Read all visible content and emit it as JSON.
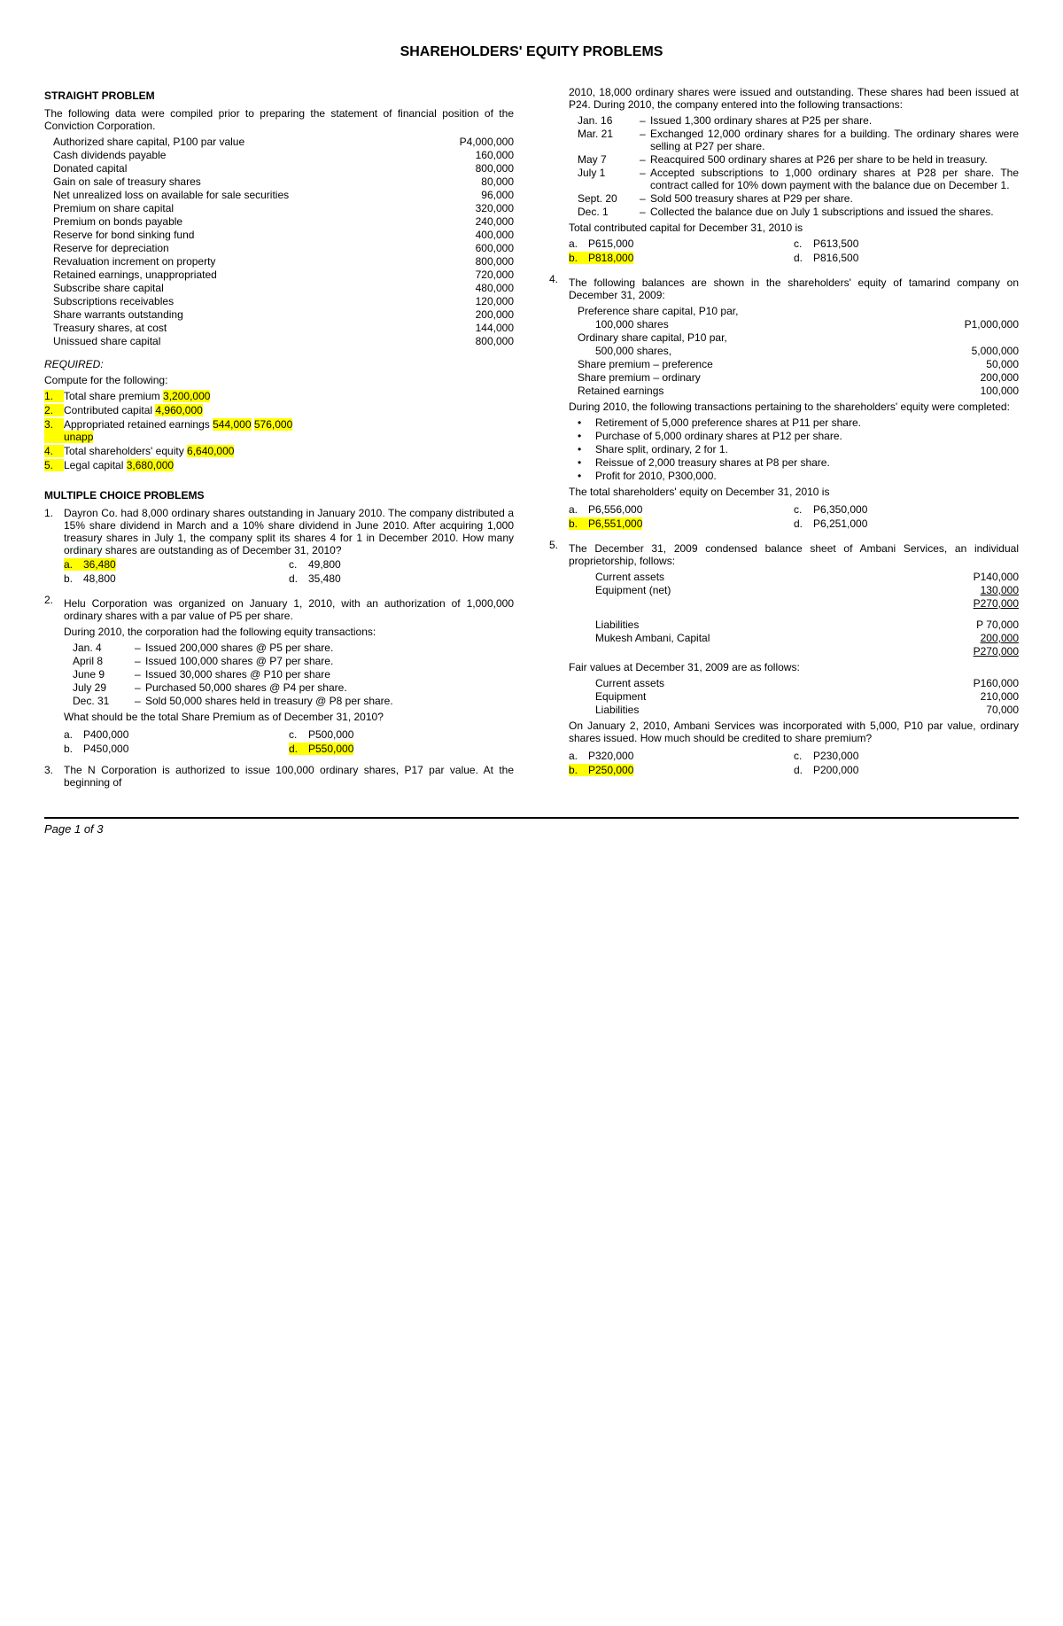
{
  "title": "SHAREHOLDERS' EQUITY PROBLEMS",
  "left": {
    "straight_title": "STRAIGHT PROBLEM",
    "straight_intro": "The following data were compiled prior to preparing the statement of financial position of the Conviction Corporation.",
    "table": [
      {
        "label": "Authorized share capital, P100 par value",
        "value": "P4,000,000"
      },
      {
        "label": "Cash dividends payable",
        "value": "160,000"
      },
      {
        "label": "Donated capital",
        "value": "800,000"
      },
      {
        "label": "Gain on sale of treasury shares",
        "value": "80,000"
      },
      {
        "label": "Net unrealized loss on available for sale securities",
        "value": "96,000"
      },
      {
        "label": "Premium on share capital",
        "value": "320,000"
      },
      {
        "label": "Premium on bonds payable",
        "value": "240,000"
      },
      {
        "label": "Reserve for bond sinking fund",
        "value": "400,000"
      },
      {
        "label": "Reserve for depreciation",
        "value": "600,000"
      },
      {
        "label": "Revaluation increment on property",
        "value": "800,000"
      },
      {
        "label": "Retained earnings, unappropriated",
        "value": "720,000"
      },
      {
        "label": "Subscribe share capital",
        "value": "480,000"
      },
      {
        "label": "Subscriptions receivables",
        "value": "120,000"
      },
      {
        "label": "Share warrants outstanding",
        "value": "200,000"
      },
      {
        "label": "Treasury shares, at cost",
        "value": "144,000"
      },
      {
        "label": "Unissued share capital",
        "value": "800,000"
      }
    ],
    "required_label": "REQUIRED:",
    "compute_label": "Compute for the following:",
    "req": [
      {
        "n": "1.",
        "t": "Total share premium",
        "a": "3,200,000"
      },
      {
        "n": "2.",
        "t": "Contributed capital",
        "a": "4,960,000"
      },
      {
        "n": "3.",
        "t": "Appropriated retained earnings",
        "a": "544,000",
        "a2": "576,000",
        "extra": "unapp"
      },
      {
        "n": "4.",
        "t": "Total shareholders' equity",
        "a": "6,640,000"
      },
      {
        "n": "5.",
        "t": "Legal capital",
        "a": "3,680,000"
      }
    ],
    "mcp_title": "MULTIPLE CHOICE PROBLEMS",
    "q1": {
      "n": "1.",
      "text": "Dayron Co. had 8,000 ordinary shares outstanding in January 2010.  The company distributed a 15% share dividend in March and a 10% share dividend in June 2010.  After acquiring 1,000 treasury shares in July 1, the company split its shares 4 for 1 in December 2010.  How many ordinary shares are outstanding as of December 31, 2010?",
      "a": "36,480",
      "b": "48,800",
      "c": "49,800",
      "d": "35,480"
    },
    "q2": {
      "n": "2.",
      "intro": "Helu Corporation was organized on January 1, 2010, with an authorization of 1,000,000 ordinary shares with a par value of P5 per share.",
      "during": "During 2010, the corporation had the following equity transactions:",
      "trans": [
        {
          "d": "Jan. 4",
          "t": "Issued 200,000 shares @ P5 per share."
        },
        {
          "d": "April 8",
          "t": "Issued 100,000 shares @ P7 per share."
        },
        {
          "d": "June 9",
          "t": "Issued 30,000 shares @ P10 per share"
        },
        {
          "d": "July 29",
          "t": "Purchased 50,000 shares @ P4 per share."
        },
        {
          "d": "Dec. 31",
          "t": "Sold 50,000 shares held in treasury @ P8 per share."
        }
      ],
      "ask": "What should be the total Share Premium as of December 31, 2010?",
      "a": "P400,000",
      "b": "P450,000",
      "c": "P500,000",
      "d": "P550,000"
    },
    "q3": {
      "n": "3.",
      "text": "The N Corporation is authorized to issue 100,000 ordinary shares, P17 par value.  At the beginning of"
    }
  },
  "right": {
    "q3cont": "2010, 18,000 ordinary shares were issued and outstanding.  These shares had been issued at P24.  During 2010, the company entered into the following transactions:",
    "q3trans": [
      {
        "d": "Jan. 16",
        "t": "Issued 1,300 ordinary shares at P25 per share."
      },
      {
        "d": "Mar. 21",
        "t": "Exchanged 12,000 ordinary shares for a building.  The ordinary shares were selling at P27 per share."
      },
      {
        "d": "May 7",
        "t": "Reacquired 500 ordinary shares at P26 per share to be held in treasury."
      },
      {
        "d": "July 1",
        "t": "Accepted subscriptions to 1,000 ordinary shares at P28 per share.  The contract called for 10% down payment with the balance due on December 1."
      },
      {
        "d": "Sept. 20",
        "t": "Sold 500 treasury shares at P29 per share."
      },
      {
        "d": "Dec. 1",
        "t": "Collected the balance due on July 1 subscriptions and issued the shares."
      }
    ],
    "q3ask": "Total contributed capital for December 31, 2010 is",
    "q3a": "P615,000",
    "q3b": "P818,000",
    "q3c": "P613,500",
    "q3d": "P816,500",
    "q4": {
      "n": "4.",
      "text": "The following balances are shown in the shareholders' equity of tamarind company on December 31, 2009:",
      "bal": [
        {
          "l": "Preference share capital, P10 par,",
          "l2": "100,000 shares",
          "v": "P1,000,000"
        },
        {
          "l": "Ordinary share capital, P10 par,",
          "l2": "500,000 shares,",
          "v": "5,000,000"
        },
        {
          "l": "Share premium – preference",
          "v": "50,000"
        },
        {
          "l": "Share premium – ordinary",
          "v": "200,000"
        },
        {
          "l": "Retained earnings",
          "v": "100,000"
        }
      ],
      "during": "During 2010, the following transactions pertaining to the shareholders' equity were completed:",
      "bul": [
        "Retirement of 5,000 preference shares at P11 per share.",
        "Purchase of 5,000 ordinary shares at P12 per share.",
        "Share split, ordinary, 2 for 1.",
        "Reissue of 2,000 treasury shares at P8 per share.",
        "Profit for 2010, P300,000."
      ],
      "ask": "The total shareholders' equity on December 31, 2010 is",
      "a": "P6,556,000",
      "b": "P6,551,000",
      "c": "P6,350,000",
      "d": "P6,251,000"
    },
    "q5": {
      "n": "5.",
      "text": "The December 31, 2009 condensed balance sheet of Ambani Services, an individual proprietorship, follows:",
      "bs1": [
        {
          "l": "Current assets",
          "v": "P140,000"
        },
        {
          "l": "Equipment (net)",
          "v": "130,000",
          "u": true
        },
        {
          "l": "",
          "v": "P270,000",
          "u": true
        }
      ],
      "bs2": [
        {
          "l": "Liabilities",
          "v": "P  70,000"
        },
        {
          "l": "Mukesh Ambani, Capital",
          "v": "200,000",
          "u": true
        },
        {
          "l": "",
          "v": "P270,000",
          "u": true
        }
      ],
      "fair": "Fair values at December 31, 2009 are as follows:",
      "fv": [
        {
          "l": "Current assets",
          "v": "P160,000"
        },
        {
          "l": "Equipment",
          "v": "210,000"
        },
        {
          "l": "Liabilities",
          "v": "70,000"
        }
      ],
      "inc": "On January 2, 2010, Ambani Services was incorporated with 5,000, P10 par value, ordinary shares issued.  How much should be credited to share premium?",
      "a": "P320,000",
      "b": "P250,000",
      "c": "P230,000",
      "d": "P200,000"
    }
  },
  "footer": "Page 1 of 3"
}
